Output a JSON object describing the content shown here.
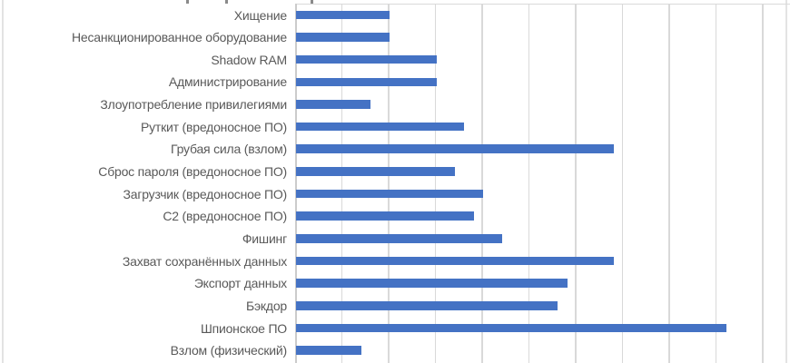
{
  "chart_data": {
    "type": "bar",
    "orientation": "horizontal",
    "title": "",
    "title_note_visible_text": "",
    "xlabel": "",
    "ylabel": "",
    "categories": [
      "Хищение",
      "Несанкционированное оборудование",
      "Shadow RAM",
      "Администрирование",
      "Злоупотребление привилегиями",
      "Руткит (вредоносное ПО)",
      "Грубая сила (взлом)",
      "Сброс пароля (вредоносное ПО)",
      "Загрузчик (вредоносное ПО)",
      "C2 (вредоносное ПО)",
      "Фишинг",
      "Захват сохранённых данных",
      "Экспорт данных",
      "Бэкдор",
      "Шпионское ПО",
      "Взлом (физический)"
    ],
    "values": [
      10,
      10,
      15,
      15,
      8,
      18,
      34,
      17,
      20,
      19,
      22,
      34,
      29,
      28,
      46,
      7
    ],
    "x_gridline_interval": 5,
    "x_visible_range": [
      0,
      52.5
    ],
    "grid": true,
    "legend": false,
    "axis_tick_labels_visible": false,
    "bar_color": "#4472C4",
    "gridline_color": "#D9D9D9",
    "label_color": "#595959"
  }
}
